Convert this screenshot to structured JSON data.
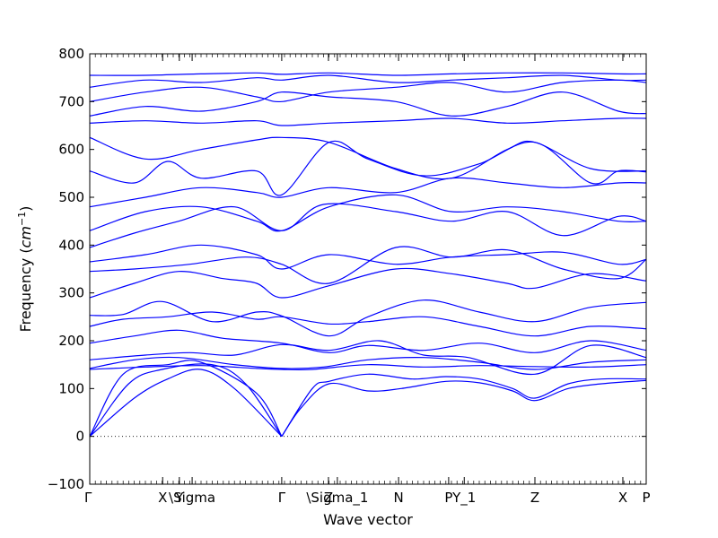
{
  "chart_data": {
    "type": "line",
    "title": "",
    "xlabel": "Wave vector",
    "ylabel_text": "Frequency (",
    "ylabel_unit_base": "cm",
    "ylabel_unit_exp": "−1",
    "ylabel_close": ")",
    "ylim": [
      -100,
      800
    ],
    "yticks": [
      -100,
      0,
      100,
      200,
      300,
      400,
      500,
      600,
      700,
      800
    ],
    "x_range": [
      0,
      1
    ],
    "grid": false,
    "legend": "none",
    "line_color": "#0000ff",
    "zero_line": {
      "y": 0,
      "style": "dotted",
      "color": "#000000"
    },
    "x_ticks": [
      {
        "label": "Γ",
        "x": 0.0
      },
      {
        "label": "X",
        "x": 0.131
      },
      {
        "label": "Y",
        "x": 0.161
      },
      {
        "label": "\\Sigma",
        "x": 0.184
      },
      {
        "label": "Γ",
        "x": 0.345
      },
      {
        "label": "Z",
        "x": 0.429
      },
      {
        "label": "\\Sigma_1",
        "x": 0.445
      },
      {
        "label": "N",
        "x": 0.555
      },
      {
        "label": "P",
        "x": 0.645
      },
      {
        "label": "Y_1",
        "x": 0.673
      },
      {
        "label": "Z",
        "x": 0.8
      },
      {
        "label": "X",
        "x": 0.958
      },
      {
        "label": "P",
        "x": 1.0
      }
    ],
    "series": [
      {
        "x": [
          0,
          0.08,
          0.14,
          0.2,
          0.26,
          0.345
        ],
        "values": [
          0,
          80,
          120,
          140,
          100,
          0
        ]
      },
      {
        "x": [
          0,
          0.07,
          0.13,
          0.22,
          0.28,
          0.345
        ],
        "values": [
          0,
          110,
          140,
          150,
          110,
          0
        ]
      },
      {
        "x": [
          0,
          0.06,
          0.14,
          0.2,
          0.3,
          0.345
        ],
        "values": [
          0,
          130,
          150,
          155,
          90,
          0
        ]
      },
      {
        "x": [
          0.345,
          0.38,
          0.43,
          0.5,
          0.56,
          0.64,
          0.7,
          0.76,
          0.8,
          0.86,
          0.92,
          1.0
        ],
        "values": [
          0,
          60,
          110,
          95,
          100,
          115,
          112,
          95,
          75,
          100,
          110,
          117
        ]
      },
      {
        "x": [
          0.345,
          0.4,
          0.43,
          0.5,
          0.58,
          0.64,
          0.7,
          0.76,
          0.8,
          0.86,
          0.92,
          1.0
        ],
        "values": [
          0,
          100,
          115,
          130,
          120,
          125,
          120,
          100,
          80,
          110,
          120,
          120
        ]
      },
      {
        "x": [
          0,
          0.1,
          0.2,
          0.3,
          0.345,
          0.4,
          0.5,
          0.6,
          0.7,
          0.8,
          0.9,
          1.0
        ],
        "values": [
          140,
          145,
          148,
          142,
          140,
          140,
          150,
          145,
          148,
          146,
          145,
          150
        ]
      },
      {
        "x": [
          0,
          0.08,
          0.16,
          0.26,
          0.345,
          0.42,
          0.5,
          0.6,
          0.7,
          0.8,
          0.9,
          1.0
        ],
        "values": [
          142,
          160,
          165,
          150,
          142,
          145,
          160,
          165,
          155,
          140,
          155,
          160
        ]
      },
      {
        "x": [
          0,
          0.1,
          0.18,
          0.26,
          0.345,
          0.43,
          0.52,
          0.6,
          0.68,
          0.8,
          0.9,
          1.0
        ],
        "values": [
          160,
          170,
          175,
          170,
          192,
          180,
          200,
          170,
          165,
          130,
          190,
          165
        ]
      },
      {
        "x": [
          0,
          0.08,
          0.16,
          0.24,
          0.345,
          0.43,
          0.5,
          0.6,
          0.7,
          0.8,
          0.9,
          1.0
        ],
        "values": [
          195,
          210,
          222,
          205,
          195,
          175,
          190,
          180,
          195,
          175,
          200,
          180
        ]
      },
      {
        "x": [
          0,
          0.06,
          0.14,
          0.22,
          0.3,
          0.345,
          0.43,
          0.5,
          0.6,
          0.7,
          0.8,
          0.9,
          1.0
        ],
        "values": [
          230,
          245,
          250,
          260,
          245,
          250,
          235,
          240,
          250,
          230,
          210,
          230,
          225
        ]
      },
      {
        "x": [
          0,
          0.06,
          0.13,
          0.22,
          0.3,
          0.345,
          0.43,
          0.5,
          0.6,
          0.7,
          0.8,
          0.9,
          1.0
        ],
        "values": [
          253,
          255,
          282,
          240,
          260,
          252,
          210,
          250,
          285,
          260,
          240,
          270,
          280
        ]
      },
      {
        "x": [
          0,
          0.08,
          0.16,
          0.24,
          0.3,
          0.345,
          0.43,
          0.55,
          0.65,
          0.75,
          0.8,
          0.9,
          1.0
        ],
        "values": [
          290,
          320,
          345,
          330,
          320,
          290,
          315,
          350,
          340,
          320,
          310,
          340,
          325
        ]
      },
      {
        "x": [
          0,
          0.08,
          0.18,
          0.28,
          0.345,
          0.43,
          0.55,
          0.65,
          0.75,
          0.85,
          0.95,
          1.0
        ],
        "values": [
          345,
          350,
          360,
          375,
          360,
          320,
          395,
          375,
          390,
          350,
          330,
          370
        ]
      },
      {
        "x": [
          0,
          0.1,
          0.2,
          0.3,
          0.345,
          0.43,
          0.55,
          0.65,
          0.75,
          0.85,
          0.95,
          1.0
        ],
        "values": [
          365,
          380,
          400,
          380,
          350,
          380,
          360,
          375,
          380,
          385,
          360,
          370
        ]
      },
      {
        "x": [
          0,
          0.08,
          0.16,
          0.26,
          0.345,
          0.42,
          0.55,
          0.65,
          0.75,
          0.85,
          0.95,
          1.0
        ],
        "values": [
          395,
          425,
          450,
          480,
          430,
          485,
          470,
          450,
          470,
          420,
          460,
          450
        ]
      },
      {
        "x": [
          0,
          0.1,
          0.2,
          0.3,
          0.345,
          0.43,
          0.55,
          0.65,
          0.75,
          0.85,
          0.95,
          1.0
        ],
        "values": [
          430,
          470,
          480,
          450,
          430,
          480,
          505,
          470,
          480,
          470,
          450,
          450
        ]
      },
      {
        "x": [
          0,
          0.1,
          0.2,
          0.3,
          0.345,
          0.43,
          0.55,
          0.65,
          0.75,
          0.85,
          0.95,
          1.0
        ],
        "values": [
          480,
          500,
          520,
          510,
          500,
          520,
          510,
          540,
          530,
          520,
          530,
          530
        ]
      },
      {
        "x": [
          0,
          0.08,
          0.14,
          0.2,
          0.3,
          0.345,
          0.43,
          0.5,
          0.6,
          0.7,
          0.8,
          0.9,
          0.95,
          1.0
        ],
        "values": [
          555,
          530,
          575,
          540,
          555,
          505,
          615,
          580,
          545,
          570,
          615,
          530,
          555,
          553
        ]
      },
      {
        "x": [
          0,
          0.1,
          0.2,
          0.3,
          0.345,
          0.43,
          0.55,
          0.65,
          0.75,
          0.8,
          0.9,
          1.0
        ],
        "values": [
          625,
          580,
          600,
          620,
          625,
          615,
          560,
          540,
          600,
          615,
          560,
          555
        ]
      },
      {
        "x": [
          0,
          0.1,
          0.2,
          0.3,
          0.345,
          0.43,
          0.55,
          0.65,
          0.75,
          0.85,
          0.95,
          1.0
        ],
        "values": [
          655,
          660,
          655,
          660,
          650,
          655,
          660,
          665,
          655,
          660,
          665,
          665
        ]
      },
      {
        "x": [
          0,
          0.1,
          0.2,
          0.3,
          0.345,
          0.43,
          0.55,
          0.65,
          0.75,
          0.85,
          0.95,
          1.0
        ],
        "values": [
          670,
          690,
          680,
          700,
          720,
          710,
          700,
          670,
          690,
          720,
          680,
          675
        ]
      },
      {
        "x": [
          0,
          0.1,
          0.2,
          0.3,
          0.345,
          0.43,
          0.55,
          0.65,
          0.75,
          0.85,
          0.95,
          1.0
        ],
        "values": [
          700,
          720,
          730,
          710,
          700,
          720,
          730,
          740,
          720,
          740,
          745,
          740
        ]
      },
      {
        "x": [
          0,
          0.1,
          0.2,
          0.3,
          0.345,
          0.43,
          0.55,
          0.65,
          0.75,
          0.85,
          0.95,
          1.0
        ],
        "values": [
          730,
          745,
          740,
          750,
          745,
          755,
          740,
          745,
          750,
          755,
          745,
          745
        ]
      },
      {
        "x": [
          0,
          0.1,
          0.2,
          0.3,
          0.345,
          0.43,
          0.55,
          0.65,
          0.75,
          0.85,
          0.95,
          1.0
        ],
        "values": [
          755,
          755,
          758,
          760,
          757,
          760,
          755,
          758,
          760,
          760,
          758,
          758
        ]
      }
    ]
  }
}
